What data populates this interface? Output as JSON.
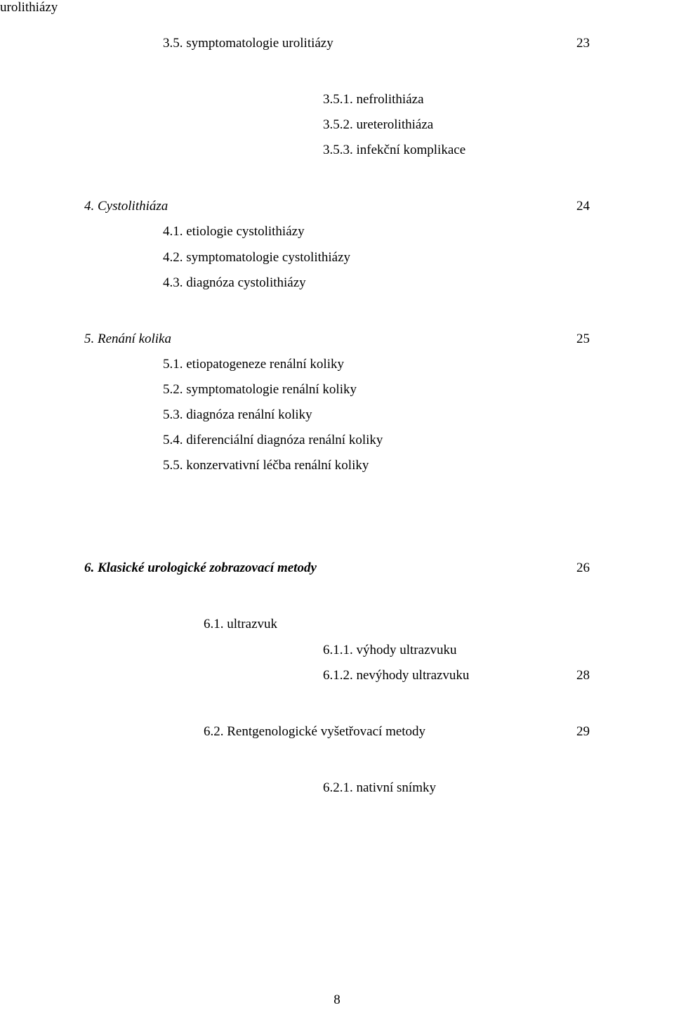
{
  "top_left": "urolithiázy",
  "lines": {
    "l1_text": "3.5. symptomatologie urolitiázy",
    "l1_page": "23",
    "l2": "3.5.1. nefrolithiáza",
    "l3": "3.5.2. ureterolithiáza",
    "l4": "3.5.3. infekční komplikace",
    "l5_text": "4. Cystolithiáza",
    "l5_page": "24",
    "l6": "4.1. etiologie cystolithiázy",
    "l7": "4.2. symptomatologie cystolithiázy",
    "l8": "4.3. diagnóza cystolithiázy",
    "l9_text": "5. Renání kolika",
    "l9_page": "25",
    "l10": "5.1. etiopatogeneze renální koliky",
    "l11": "5.2. symptomatologie renální koliky",
    "l12": "5.3. diagnóza renální koliky",
    "l13": "5.4. diferenciální diagnóza renální koliky",
    "l14": "5.5. konzervativní léčba renální koliky",
    "l15_text": "6. Klasické urologické zobrazovací metody",
    "l15_page": "26",
    "l16": "6.1. ultrazvuk",
    "l17": "6.1.1. výhody ultrazvuku",
    "l18_text": "6.1.2. nevýhody ultrazvuku",
    "l18_page": "28",
    "l19_text": "6.2. Rentgenologické vyšetřovací metody",
    "l19_page": "29",
    "l20": "6.2.1. nativní snímky"
  },
  "page_number": "8"
}
